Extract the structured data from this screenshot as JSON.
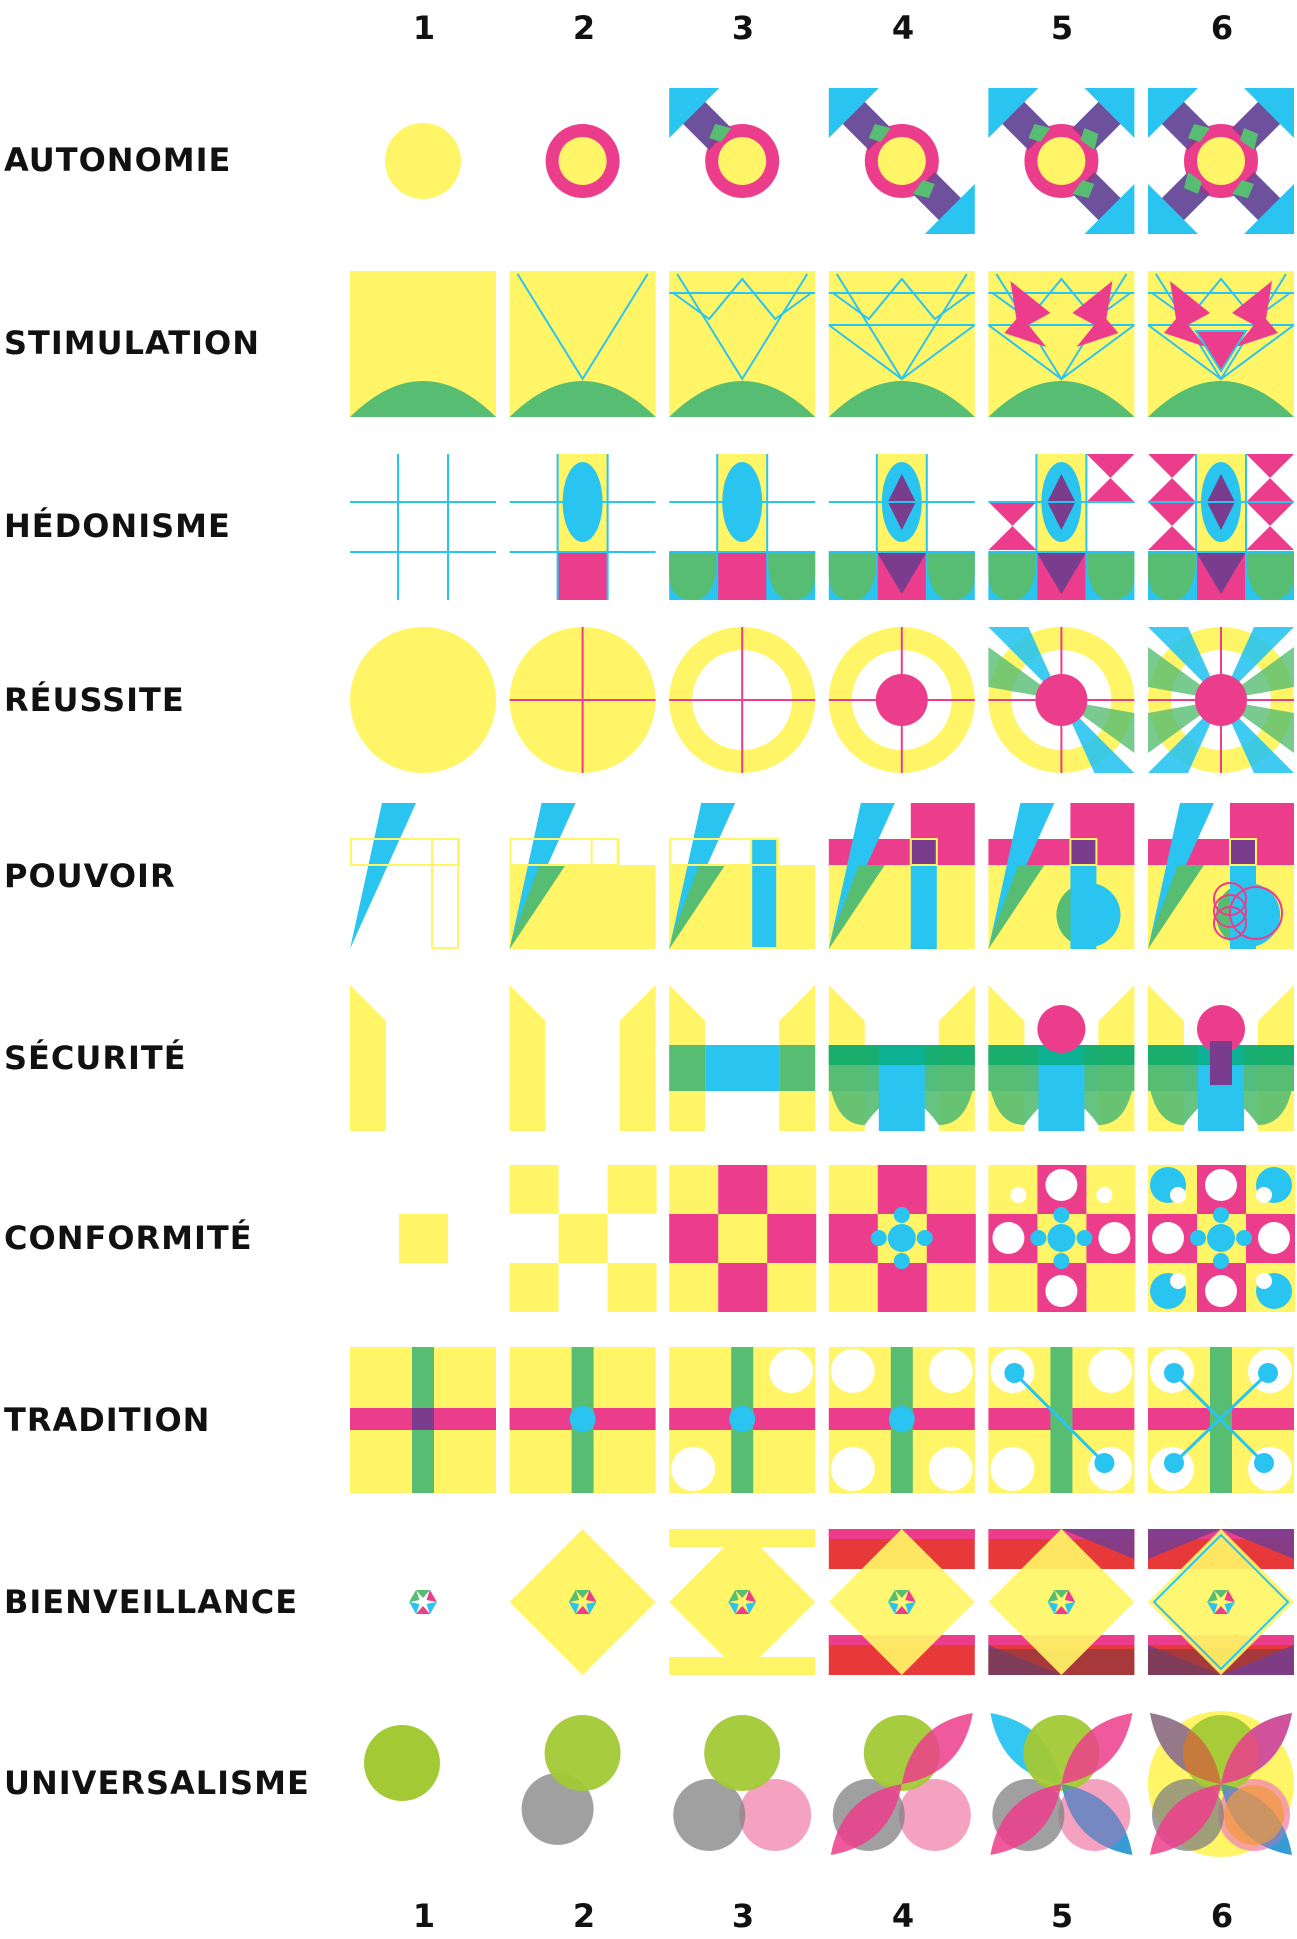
{
  "columns": [
    "1",
    "2",
    "3",
    "4",
    "5",
    "6"
  ],
  "rows": [
    {
      "label": "AUTONOMIE"
    },
    {
      "label": "STIMULATION"
    },
    {
      "label": "HÉDONISME"
    },
    {
      "label": "RÉUSSITE"
    },
    {
      "label": "POUVOIR"
    },
    {
      "label": "SÉCURITÉ"
    },
    {
      "label": "CONFORMITÉ"
    },
    {
      "label": "TRADITION"
    },
    {
      "label": "BIENVEILLANCE"
    },
    {
      "label": "UNIVERSALISME"
    }
  ],
  "colors": {
    "yellow": "#FFF566",
    "pink": "#EC3D8C",
    "cyan": "#29C4F0",
    "green": "#56BD72",
    "purple": "#7A3D8E",
    "lime": "#A3C935",
    "grey": "#9B9B9B",
    "red": "#E8393A",
    "white": "#FFFFFF",
    "text": "#111111"
  }
}
